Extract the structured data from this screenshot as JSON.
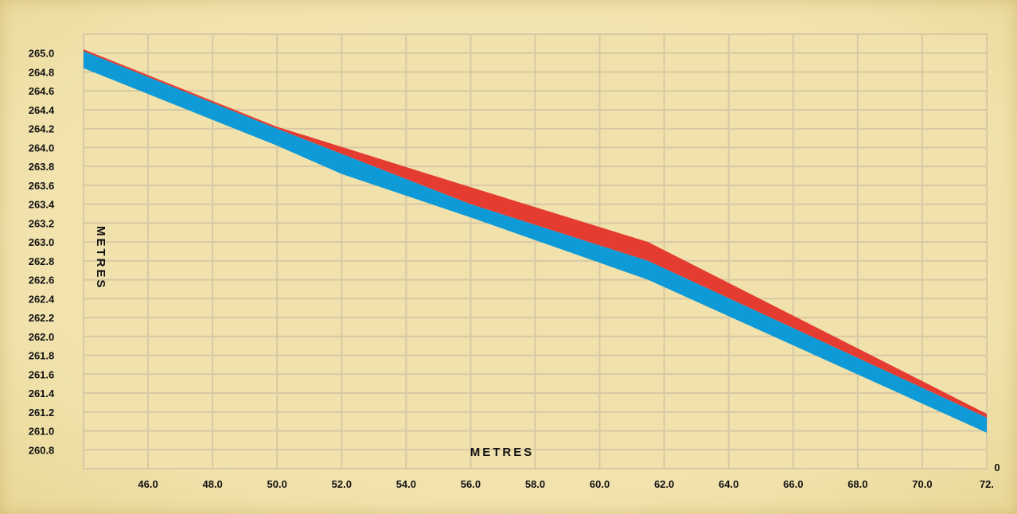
{
  "colors": {
    "background": "#f1e2ad",
    "grid": "#d8c8a4",
    "upper_band": "#e53c31",
    "lower_band": "#0e9ad6"
  },
  "x_extra_label": "0",
  "chart_data": {
    "type": "area",
    "title": "",
    "xlabel": "METRES",
    "ylabel": "METRES",
    "xlim": [
      44.0,
      72.0
    ],
    "ylim": [
      260.6,
      265.2
    ],
    "x_ticks": [
      46.0,
      48.0,
      50.0,
      52.0,
      54.0,
      56.0,
      58.0,
      60.0,
      62.0,
      64.0,
      66.0,
      68.0,
      70.0,
      72.0
    ],
    "x_tick_labels": [
      "46.0",
      "48.0",
      "50.0",
      "52.0",
      "54.0",
      "56.0",
      "58.0",
      "60.0",
      "62.0",
      "64.0",
      "66.0",
      "68.0",
      "70.0",
      "72."
    ],
    "y_ticks": [
      260.8,
      261.0,
      261.2,
      261.4,
      261.6,
      261.8,
      262.0,
      262.2,
      262.4,
      262.6,
      262.8,
      263.0,
      263.2,
      263.4,
      263.6,
      263.8,
      264.0,
      264.2,
      264.4,
      264.6,
      264.8,
      265.0
    ],
    "y_tick_labels": [
      "260.8",
      "261.0",
      "261.2",
      "261.4",
      "261.6",
      "261.8",
      "262.0",
      "262.2",
      "262.4",
      "262.6",
      "262.8",
      "263.0",
      "263.2",
      "263.4",
      "263.6",
      "263.8",
      "264.0",
      "264.2",
      "264.4",
      "264.6",
      "264.8",
      "265.0"
    ],
    "grid": true,
    "legend": "none",
    "series": [
      {
        "color": "#e53c31",
        "upper": [
          [
            44.0,
            265.04
          ],
          [
            50.0,
            264.22
          ],
          [
            56.0,
            263.58
          ],
          [
            61.5,
            263.0
          ],
          [
            72.0,
            261.18
          ]
        ],
        "lower": [
          [
            44.0,
            265.02
          ],
          [
            50.0,
            264.2
          ],
          [
            56.0,
            263.4
          ],
          [
            61.5,
            262.8
          ],
          [
            72.0,
            261.14
          ]
        ]
      },
      {
        "color": "#0e9ad6",
        "upper": [
          [
            44.0,
            265.02
          ],
          [
            50.0,
            264.2
          ],
          [
            56.0,
            263.4
          ],
          [
            61.5,
            262.8
          ],
          [
            72.0,
            261.14
          ]
        ],
        "lower": [
          [
            44.0,
            264.84
          ],
          [
            50.0,
            264.02
          ],
          [
            52.0,
            263.72
          ],
          [
            56.0,
            263.26
          ],
          [
            61.5,
            262.6
          ],
          [
            72.0,
            260.98
          ]
        ]
      }
    ]
  }
}
